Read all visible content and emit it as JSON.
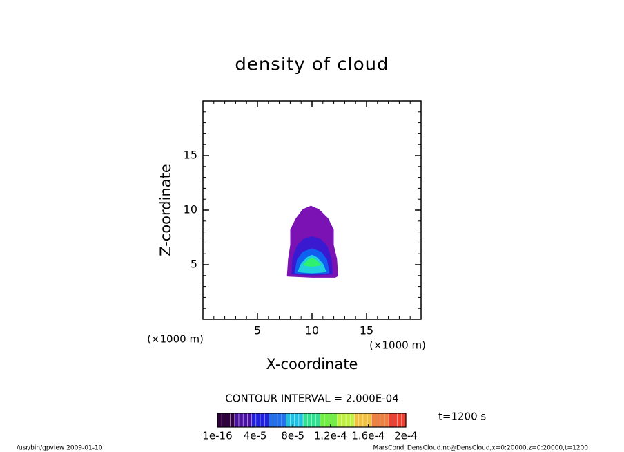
{
  "chart_data": {
    "type": "contour",
    "title": "density of cloud",
    "x_label": "X-coordinate",
    "y_label": "Z-coordinate",
    "x_unit": "(×1000 m)",
    "y_unit": "(×1000 m)",
    "xlim": [
      0,
      20
    ],
    "ylim": [
      0,
      20
    ],
    "xticks": [
      5,
      10,
      15
    ],
    "yticks": [
      5,
      10,
      15
    ],
    "xminor": [
      1,
      2,
      3,
      4,
      6,
      7,
      8,
      9,
      11,
      12,
      13,
      14,
      16,
      17,
      18,
      19
    ],
    "yminor": [
      1,
      2,
      3,
      4,
      6,
      7,
      8,
      9,
      11,
      12,
      13,
      14,
      16,
      17,
      18,
      19
    ],
    "regions": [
      {
        "color": "#7a12b4",
        "x": [
          7.8,
          7.9,
          8.1,
          8.1,
          8.6,
          9.2,
          9.9,
          10.6,
          11.4,
          11.9,
          11.9,
          12.2,
          12.3,
          12.1,
          10.0
        ],
        "z": [
          4.0,
          5.5,
          6.8,
          8.2,
          9.2,
          10.0,
          10.3,
          10.0,
          9.2,
          8.2,
          6.8,
          5.5,
          4.0,
          3.9,
          3.9
        ]
      },
      {
        "color": "#3a1ad0",
        "x": [
          8.2,
          8.3,
          8.7,
          9.3,
          10.0,
          10.7,
          11.3,
          11.7,
          11.8,
          10.0
        ],
        "z": [
          4.2,
          5.6,
          6.7,
          7.3,
          7.5,
          7.3,
          6.7,
          5.6,
          4.2,
          4.1
        ]
      },
      {
        "color": "#1060f0",
        "x": [
          8.5,
          8.7,
          9.2,
          10.0,
          10.8,
          11.3,
          11.5,
          10.0
        ],
        "z": [
          4.3,
          5.4,
          6.1,
          6.4,
          6.1,
          5.4,
          4.3,
          4.2
        ]
      },
      {
        "color": "#20d0e0",
        "x": [
          8.8,
          9.1,
          9.6,
          10.0,
          10.4,
          10.9,
          11.2,
          10.0
        ],
        "z": [
          4.4,
          5.1,
          5.6,
          5.8,
          5.6,
          5.1,
          4.4,
          4.3
        ]
      },
      {
        "color": "#30f070",
        "x": [
          9.3,
          9.7,
          10.0,
          10.3,
          10.7,
          10.0
        ],
        "z": [
          5.0,
          5.4,
          5.5,
          5.4,
          5.0,
          4.9
        ]
      }
    ],
    "contour_interval": "CONTOUR INTERVAL = 2.000E-04",
    "time_label": "t=1200 s",
    "colorbar": {
      "lim": [
        1e-16,
        0.0002
      ],
      "ticks": [
        {
          "value": 1e-16,
          "label": "1e-16"
        },
        {
          "value": 4e-05,
          "label": "4e-5"
        },
        {
          "value": 8e-05,
          "label": "8e-5"
        },
        {
          "value": 0.00012,
          "label": "1.2e-4"
        },
        {
          "value": 0.00016,
          "label": "1.6e-4"
        },
        {
          "value": 0.0002,
          "label": "2e-4"
        }
      ],
      "colors": [
        "#300040",
        "#4a10a0",
        "#2020e0",
        "#2070f0",
        "#20c0e0",
        "#30e090",
        "#70f040",
        "#c0f040",
        "#f0c040",
        "#f08040",
        "#f04030"
      ]
    },
    "footer_left": "/usr/bin/gpview  2009-01-10",
    "footer_right": "MarsCond_DensCloud.nc@DensCloud,x=0:20000,z=0:20000,t=1200"
  }
}
